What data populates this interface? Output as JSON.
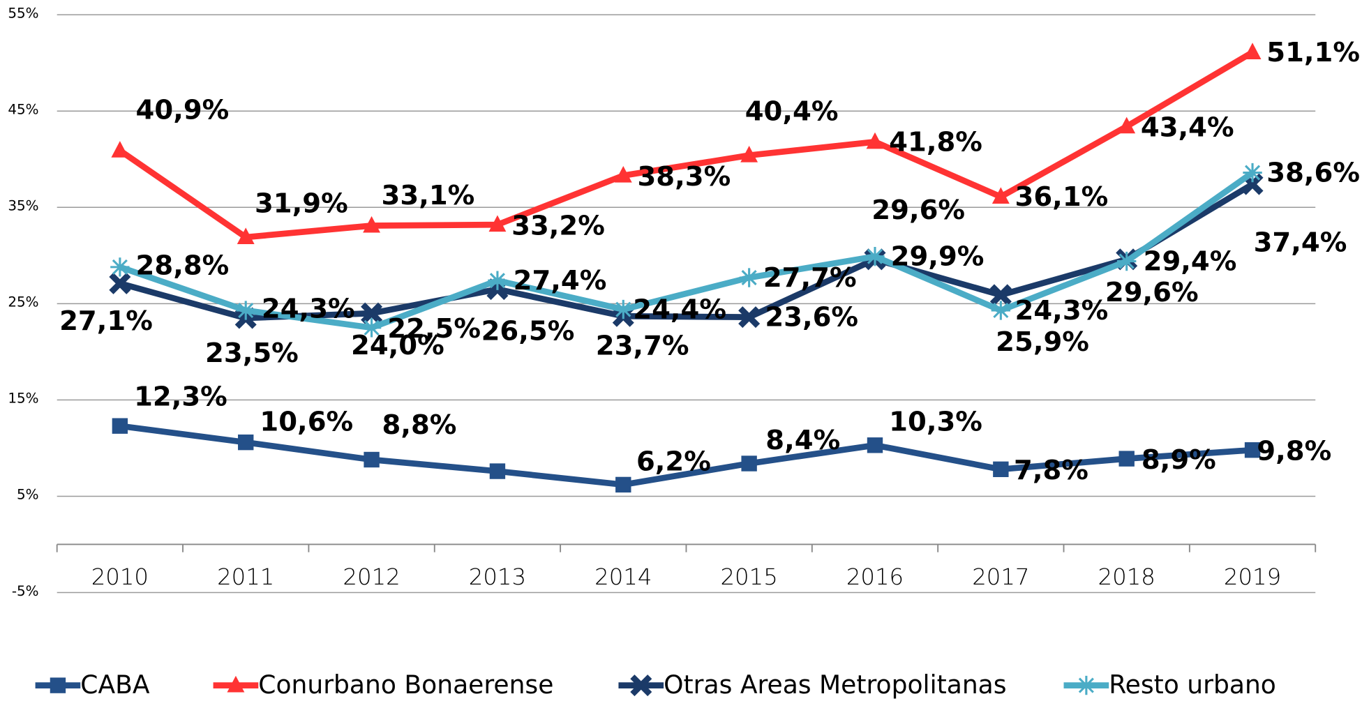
{
  "chart_data": {
    "type": "line",
    "categories": [
      "2010",
      "2011",
      "2012",
      "2013",
      "2014",
      "2015",
      "2016",
      "2017",
      "2018",
      "2019"
    ],
    "ylim": [
      -5,
      55
    ],
    "yticks": [
      {
        "value": -5,
        "label": "-5%"
      },
      {
        "value": 5,
        "label": "5%"
      },
      {
        "value": 15,
        "label": "15%"
      },
      {
        "value": 25,
        "label": "25%"
      },
      {
        "value": 35,
        "label": "35%"
      },
      {
        "value": 45,
        "label": "45%"
      },
      {
        "value": 55,
        "label": "55%"
      }
    ],
    "grid": true,
    "legend": "bottom",
    "series": [
      {
        "name": "CABA",
        "color": "#245089",
        "marker": "square",
        "values": [
          12.3,
          10.6,
          8.8,
          7.6,
          6.2,
          8.4,
          10.3,
          7.8,
          8.9,
          9.8
        ],
        "value_labels": [
          "12,3%",
          "10,6%",
          "8,8%",
          null,
          "6,2%",
          "8,4%",
          "10,3%",
          "7,8%",
          "8,9%",
          "9,8%"
        ]
      },
      {
        "name": "Conurbano Bonaerense",
        "color": "#ff3333",
        "marker": "triangle",
        "values": [
          40.9,
          31.9,
          33.1,
          33.2,
          38.3,
          40.4,
          41.8,
          36.1,
          43.4,
          51.1
        ],
        "value_labels": [
          "40,9%",
          "31,9%",
          "33,1%",
          "33,2%",
          "38,3%",
          "40,4%",
          "41,8%",
          "36,1%",
          "43,4%",
          "51,1%"
        ]
      },
      {
        "name": "Otras Areas Metropolitanas",
        "color": "#1b3a68",
        "marker": "x",
        "values": [
          27.1,
          23.5,
          24.0,
          26.5,
          23.7,
          23.6,
          29.6,
          25.9,
          29.6,
          37.4
        ],
        "value_labels": [
          "27,1%",
          "23,5%",
          "24,0%",
          "26,5%",
          "23,7%",
          "23,6%",
          "29,6%",
          "25,9%",
          "29,6%",
          "37,4%"
        ]
      },
      {
        "name": "Resto urbano",
        "color": "#4bacc6",
        "marker": "star",
        "values": [
          28.8,
          24.3,
          22.5,
          27.4,
          24.4,
          27.7,
          29.9,
          24.3,
          29.4,
          38.6
        ],
        "value_labels": [
          "28,8%",
          "24,3%",
          "22,5%",
          "27,4%",
          "24,4%",
          "27,7%",
          "29,9%",
          "24,3%",
          "29,4%",
          "38,6%"
        ]
      }
    ]
  }
}
